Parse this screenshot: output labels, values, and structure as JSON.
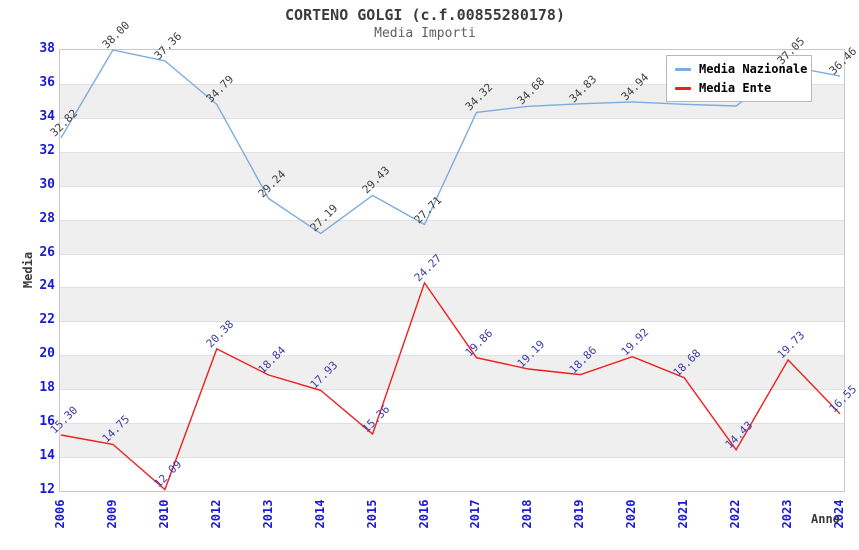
{
  "header": {
    "title": "CORTENO GOLGI (c.f.00855280178)",
    "subtitle": "Media Importi"
  },
  "axes": {
    "y_label": "Media",
    "x_label": "Anno",
    "y_tick_labels": [
      "12",
      "14",
      "16",
      "18",
      "20",
      "22",
      "24",
      "26",
      "28",
      "30",
      "32",
      "34",
      "36",
      "38"
    ],
    "x_tick_labels": [
      "2006",
      "2009",
      "2010",
      "2012",
      "2013",
      "2014",
      "2015",
      "2016",
      "2017",
      "2018",
      "2019",
      "2020",
      "2021",
      "2022",
      "2023",
      "2024"
    ]
  },
  "legend": {
    "items": [
      {
        "label": "Media Nazionale"
      },
      {
        "label": "Media Ente"
      }
    ]
  },
  "chart_data": {
    "type": "line",
    "title": "CORTENO GOLGI (c.f.00855280178)",
    "subtitle": "Media Importi",
    "xlabel": "Anno",
    "ylabel": "Media",
    "categories": [
      "2006",
      "2009",
      "2010",
      "2012",
      "2013",
      "2014",
      "2015",
      "2016",
      "2017",
      "2018",
      "2019",
      "2020",
      "2021",
      "2022",
      "2023",
      "2024"
    ],
    "ylim": [
      12,
      38
    ],
    "ytick_step": 2,
    "grid": "horizontal-gridlines-with-alternating-gray-bands",
    "legend_position": "top-right-overlay",
    "series": [
      {
        "name": "Media Nazionale",
        "color": "#7dabdf",
        "label_color": "#3f3f3f",
        "values": [
          32.82,
          38.0,
          37.36,
          34.79,
          29.24,
          27.19,
          29.43,
          27.71,
          34.32,
          34.68,
          34.83,
          34.94,
          34.8,
          34.7,
          37.05,
          36.46
        ],
        "point_labels": [
          "32.82",
          "38.00",
          "37.36",
          "34.79",
          "29.24",
          "27.19",
          "29.43",
          "27.71",
          "34.32",
          "34.68",
          "34.83",
          "34.94",
          "",
          "",
          "37.05",
          "36.46"
        ]
      },
      {
        "name": "Media Ente",
        "color": "#ed1f1f",
        "label_color": "#3c3ca8",
        "values": [
          15.3,
          14.75,
          12.09,
          20.38,
          18.84,
          17.93,
          15.36,
          24.27,
          19.86,
          19.19,
          18.86,
          19.92,
          18.68,
          14.43,
          19.73,
          16.55
        ],
        "point_labels": [
          "15.30",
          "14.75",
          "12.09",
          "20.38",
          "18.84",
          "17.93",
          "15.36",
          "24.27",
          "19.86",
          "19.19",
          "18.86",
          "19.92",
          "18.68",
          "14.43",
          "19.73",
          "16.55"
        ]
      }
    ]
  },
  "colors": {
    "tick_label": "#1a1ad6",
    "band": "#efefef",
    "gridline": "#e0e0e0",
    "plot_border": "#c9c9c9",
    "title": "#3b3b3b",
    "subtitle": "#606060",
    "axis_title": "#3b3b3b",
    "series_nazionale": "#7dabdf",
    "series_ente": "#ed1f1f"
  }
}
